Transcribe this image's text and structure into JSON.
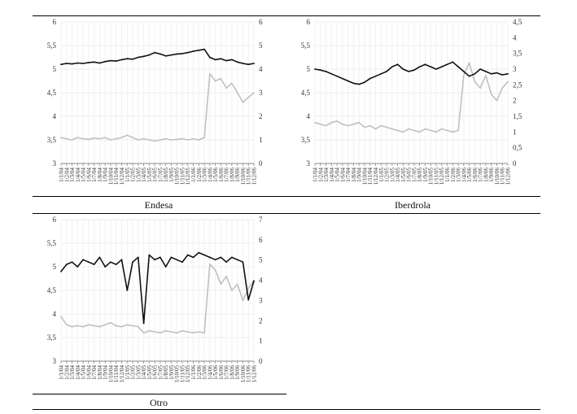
{
  "panels": [
    {
      "caption": "Endesa",
      "chart_data": {
        "type": "line",
        "title": "",
        "xlabel": "",
        "ylabel": "",
        "y_left_ticks": [
          "6",
          "5,5",
          "5",
          "4,5",
          "4",
          "3,5",
          "3"
        ],
        "y_left_range": [
          3,
          6
        ],
        "y_right_ticks": [
          "6",
          "5",
          "4",
          "3",
          "2",
          "1",
          "0"
        ],
        "y_right_range": [
          0,
          6
        ],
        "x_ticks": [
          "1/1/04",
          "1/2/04",
          "1/3/04",
          "1/4/04",
          "1/5/04",
          "1/6/04",
          "1/7/04",
          "1/8/04",
          "1/9/04",
          "1/10/04",
          "1/11/04",
          "1/12/04",
          "1/1/05",
          "1/2/05",
          "1/3/05",
          "1/4/05",
          "1/5/05",
          "1/6/05",
          "1/7/05",
          "1/8/05",
          "1/9/05",
          "1/10/05",
          "1/11/05",
          "1/12/05",
          "1/1/06",
          "1/2/06",
          "1/3/06",
          "1/4/06",
          "1/5/06",
          "1/6/06",
          "1/7/06",
          "1/8/06",
          "1/9/06",
          "1/10/06",
          "1/11/06",
          "1/12/06"
        ],
        "grid": true,
        "series": [
          {
            "axis": "left",
            "color": "#111111",
            "values": [
              5.1,
              5.12,
              5.11,
              5.13,
              5.12,
              5.14,
              5.15,
              5.13,
              5.16,
              5.18,
              5.17,
              5.2,
              5.22,
              5.21,
              5.25,
              5.27,
              5.3,
              5.35,
              5.32,
              5.28,
              5.3,
              5.32,
              5.33,
              5.35,
              5.38,
              5.4,
              5.42,
              5.25,
              5.2,
              5.22,
              5.18,
              5.2,
              5.15,
              5.12,
              5.1,
              5.12
            ]
          },
          {
            "axis": "right",
            "color": "#c0c0c0",
            "values": [
              1.1,
              1.05,
              1.0,
              1.1,
              1.05,
              1.02,
              1.08,
              1.05,
              1.1,
              1.0,
              1.05,
              1.1,
              1.2,
              1.1,
              1.0,
              1.05,
              1.0,
              0.95,
              1.0,
              1.05,
              1.0,
              1.02,
              1.05,
              1.0,
              1.05,
              1.0,
              1.1,
              3.8,
              3.5,
              3.6,
              3.2,
              3.4,
              3.0,
              2.6,
              2.8,
              3.0
            ]
          }
        ]
      }
    },
    {
      "caption": "Iberdrola",
      "chart_data": {
        "type": "line",
        "title": "",
        "xlabel": "",
        "ylabel": "",
        "y_left_ticks": [
          "6",
          "5,5",
          "5",
          "4,5",
          "4",
          "3,5",
          "3"
        ],
        "y_left_range": [
          3,
          6
        ],
        "y_right_ticks": [
          "4,5",
          "4",
          "3,5",
          "3",
          "2,5",
          "2",
          "1,5",
          "1",
          "0,5",
          "0"
        ],
        "y_right_range": [
          0,
          4.5
        ],
        "x_ticks": [
          "1/1/04",
          "1/2/04",
          "1/3/04",
          "1/4/04",
          "1/5/04",
          "1/6/04",
          "1/7/04",
          "1/8/04",
          "1/9/04",
          "1/10/04",
          "1/11/04",
          "1/12/04",
          "1/1/05",
          "1/2/05",
          "1/3/05",
          "1/4/05",
          "1/5/05",
          "1/6/05",
          "1/7/05",
          "1/8/05",
          "1/9/05",
          "1/10/05",
          "1/11/05",
          "1/12/05",
          "1/1/06",
          "1/2/06",
          "1/3/06",
          "1/4/06",
          "1/5/06",
          "1/6/06",
          "1/7/06",
          "1/8/06",
          "1/9/06",
          "1/10/06",
          "1/11/06",
          "1/12/06"
        ],
        "grid": true,
        "series": [
          {
            "axis": "left",
            "color": "#111111",
            "values": [
              5.0,
              4.98,
              4.95,
              4.9,
              4.85,
              4.8,
              4.75,
              4.7,
              4.68,
              4.72,
              4.8,
              4.85,
              4.9,
              4.95,
              5.05,
              5.1,
              5.0,
              4.95,
              4.98,
              5.05,
              5.1,
              5.05,
              5.0,
              5.05,
              5.1,
              5.15,
              5.05,
              4.95,
              4.85,
              4.9,
              5.0,
              4.95,
              4.9,
              4.92,
              4.88,
              4.9
            ]
          },
          {
            "axis": "right",
            "color": "#c0c0c0",
            "values": [
              1.3,
              1.25,
              1.2,
              1.3,
              1.35,
              1.25,
              1.2,
              1.25,
              1.3,
              1.15,
              1.2,
              1.1,
              1.2,
              1.15,
              1.1,
              1.05,
              1.0,
              1.1,
              1.05,
              1.0,
              1.1,
              1.05,
              1.0,
              1.1,
              1.05,
              1.0,
              1.05,
              2.8,
              3.2,
              2.6,
              2.4,
              2.8,
              2.2,
              2.0,
              2.4,
              2.6
            ]
          }
        ]
      }
    },
    {
      "caption": "Otro",
      "chart_data": {
        "type": "line",
        "title": "",
        "xlabel": "",
        "ylabel": "",
        "y_left_ticks": [
          "6",
          "5,5",
          "5",
          "4,5",
          "4",
          "3,5",
          "3"
        ],
        "y_left_range": [
          3,
          6
        ],
        "y_right_ticks": [
          "7",
          "6",
          "5",
          "4",
          "3",
          "2",
          "1",
          "0"
        ],
        "y_right_range": [
          0,
          7
        ],
        "x_ticks": [
          "1/1/04",
          "1/2/04",
          "1/3/04",
          "1/4/04",
          "1/5/04",
          "1/6/04",
          "1/7/04",
          "1/8/04",
          "1/9/04",
          "1/10/04",
          "1/11/04",
          "1/12/04",
          "1/1/05",
          "1/2/05",
          "1/3/05",
          "1/4/05",
          "1/5/05",
          "1/6/05",
          "1/7/05",
          "1/8/05",
          "1/9/05",
          "1/10/05",
          "1/11/05",
          "1/12/05",
          "1/1/06",
          "1/2/06",
          "1/3/06",
          "1/4/06",
          "1/5/06",
          "1/6/06",
          "1/7/06",
          "1/8/06",
          "1/9/06",
          "1/10/06",
          "1/11/06",
          "1/12/06"
        ],
        "grid": true,
        "series": [
          {
            "axis": "left",
            "color": "#111111",
            "values": [
              4.9,
              5.05,
              5.1,
              5.0,
              5.15,
              5.1,
              5.05,
              5.2,
              5.0,
              5.1,
              5.05,
              5.15,
              4.5,
              5.1,
              5.2,
              3.8,
              5.25,
              5.15,
              5.2,
              5.0,
              5.2,
              5.15,
              5.1,
              5.25,
              5.2,
              5.3,
              5.25,
              5.2,
              5.15,
              5.2,
              5.1,
              5.2,
              5.15,
              5.1,
              4.3,
              4.7
            ]
          },
          {
            "axis": "right",
            "color": "#c0c0c0",
            "values": [
              2.2,
              1.8,
              1.7,
              1.75,
              1.7,
              1.8,
              1.75,
              1.7,
              1.8,
              1.9,
              1.75,
              1.7,
              1.8,
              1.75,
              1.7,
              1.4,
              1.5,
              1.45,
              1.4,
              1.5,
              1.45,
              1.4,
              1.5,
              1.45,
              1.4,
              1.45,
              1.4,
              4.8,
              4.5,
              3.8,
              4.2,
              3.5,
              3.8,
              3.0,
              3.6,
              4.0
            ]
          }
        ]
      }
    }
  ]
}
